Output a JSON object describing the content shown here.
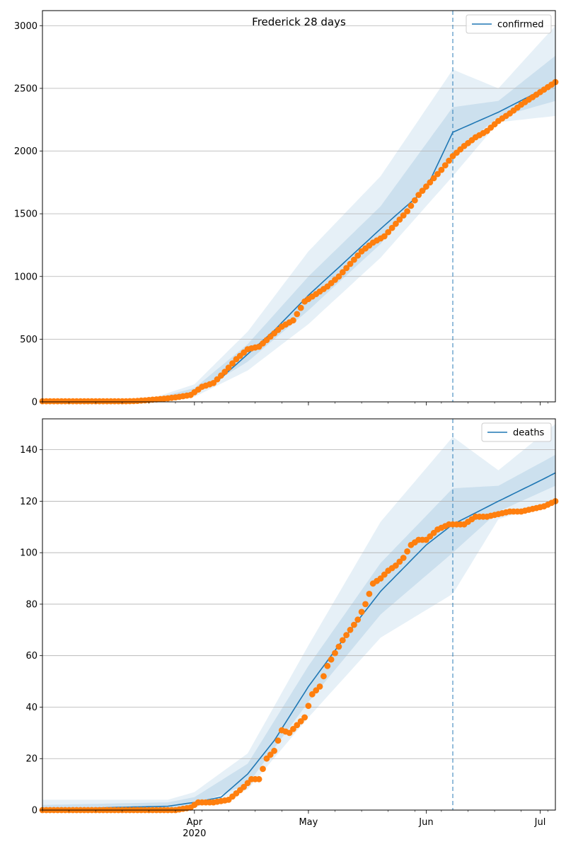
{
  "title": "Frederick 28 days",
  "colors": {
    "model": "#1f77b4",
    "observed": "#ff7f0e",
    "band": "#1f77b4",
    "grid": "#b0b0b0",
    "cutoff": "#1f77b4"
  },
  "x_axis": {
    "start": "2020-02-21",
    "end": "2020-07-05",
    "cutoff": "2020-06-08",
    "month_labels": [
      {
        "date": "2020-04-01",
        "label": "Apr",
        "sublabel": "2020"
      },
      {
        "date": "2020-05-01",
        "label": "May",
        "sublabel": ""
      },
      {
        "date": "2020-06-01",
        "label": "Jun",
        "sublabel": ""
      },
      {
        "date": "2020-07-01",
        "label": "Jul",
        "sublabel": ""
      }
    ]
  },
  "chart_data": [
    {
      "type": "line",
      "legend": "confirmed",
      "legend_position": "top-right",
      "grid": "horizontal",
      "ylim": [
        0,
        3120
      ],
      "yticks": [
        0,
        500,
        1000,
        1500,
        2000,
        2500,
        3000
      ],
      "model_points": [
        [
          "2020-02-21",
          0
        ],
        [
          "2020-03-10",
          0
        ],
        [
          "2020-03-20",
          10
        ],
        [
          "2020-03-26",
          30
        ],
        [
          "2020-04-01",
          80
        ],
        [
          "2020-04-08",
          190
        ],
        [
          "2020-04-15",
          380
        ],
        [
          "2020-04-22",
          570
        ],
        [
          "2020-05-01",
          850
        ],
        [
          "2020-05-10",
          1100
        ],
        [
          "2020-05-20",
          1380
        ],
        [
          "2020-06-01",
          1700
        ],
        [
          "2020-06-08",
          2150
        ],
        [
          "2020-06-20",
          2310
        ],
        [
          "2020-07-01",
          2480
        ],
        [
          "2020-07-05",
          2550
        ]
      ],
      "band_outer_points": [
        [
          "2020-02-21",
          0,
          0
        ],
        [
          "2020-03-20",
          0,
          20
        ],
        [
          "2020-04-01",
          40,
          140
        ],
        [
          "2020-04-15",
          250,
          560
        ],
        [
          "2020-05-01",
          620,
          1200
        ],
        [
          "2020-05-20",
          1150,
          1800
        ],
        [
          "2020-06-08",
          1800,
          2650
        ],
        [
          "2020-06-20",
          2230,
          2500
        ],
        [
          "2020-07-05",
          2280,
          3000
        ]
      ],
      "band_inner_points": [
        [
          "2020-02-21",
          0,
          0
        ],
        [
          "2020-03-20",
          2,
          15
        ],
        [
          "2020-04-01",
          60,
          110
        ],
        [
          "2020-04-15",
          320,
          460
        ],
        [
          "2020-05-01",
          730,
          1000
        ],
        [
          "2020-05-20",
          1260,
          1560
        ],
        [
          "2020-06-08",
          1980,
          2350
        ],
        [
          "2020-06-20",
          2270,
          2400
        ],
        [
          "2020-07-05",
          2400,
          2760
        ]
      ],
      "observed": [
        [
          "2020-02-21",
          5
        ],
        [
          "2020-02-24",
          5
        ],
        [
          "2020-02-27",
          5
        ],
        [
          "2020-03-01",
          5
        ],
        [
          "2020-03-04",
          5
        ],
        [
          "2020-03-07",
          5
        ],
        [
          "2020-03-10",
          5
        ],
        [
          "2020-03-13",
          5
        ],
        [
          "2020-03-16",
          6
        ],
        [
          "2020-03-19",
          12
        ],
        [
          "2020-03-22",
          20
        ],
        [
          "2020-03-25",
          28
        ],
        [
          "2020-03-28",
          40
        ],
        [
          "2020-03-31",
          55
        ],
        [
          "2020-04-03",
          120
        ],
        [
          "2020-04-06",
          150
        ],
        [
          "2020-04-09",
          240
        ],
        [
          "2020-04-12",
          340
        ],
        [
          "2020-04-15",
          420
        ],
        [
          "2020-04-18",
          440
        ],
        [
          "2020-04-21",
          520
        ],
        [
          "2020-04-24",
          600
        ],
        [
          "2020-04-27",
          650
        ],
        [
          "2020-04-30",
          800
        ],
        [
          "2020-05-03",
          860
        ],
        [
          "2020-05-06",
          920
        ],
        [
          "2020-05-09",
          1000
        ],
        [
          "2020-05-12",
          1100
        ],
        [
          "2020-05-15",
          1200
        ],
        [
          "2020-05-18",
          1270
        ],
        [
          "2020-05-21",
          1320
        ],
        [
          "2020-05-24",
          1420
        ],
        [
          "2020-05-27",
          1520
        ],
        [
          "2020-05-30",
          1650
        ],
        [
          "2020-06-02",
          1750
        ],
        [
          "2020-06-05",
          1850
        ],
        [
          "2020-06-08",
          1960
        ],
        [
          "2020-06-11",
          2040
        ],
        [
          "2020-06-14",
          2110
        ],
        [
          "2020-06-17",
          2160
        ],
        [
          "2020-06-20",
          2240
        ],
        [
          "2020-06-23",
          2300
        ],
        [
          "2020-06-26",
          2370
        ],
        [
          "2020-06-29",
          2430
        ],
        [
          "2020-07-02",
          2490
        ],
        [
          "2020-07-05",
          2550
        ]
      ]
    },
    {
      "type": "line",
      "legend": "deaths",
      "legend_position": "top-right",
      "grid": "horizontal",
      "ylim": [
        0,
        152
      ],
      "yticks": [
        0,
        20,
        40,
        60,
        80,
        100,
        120,
        140
      ],
      "model_points": [
        [
          "2020-02-21",
          0
        ],
        [
          "2020-03-01",
          0.5
        ],
        [
          "2020-03-10",
          1
        ],
        [
          "2020-03-25",
          1.5
        ],
        [
          "2020-04-01",
          3
        ],
        [
          "2020-04-08",
          5
        ],
        [
          "2020-04-15",
          14
        ],
        [
          "2020-04-22",
          27
        ],
        [
          "2020-05-01",
          48
        ],
        [
          "2020-05-10",
          66
        ],
        [
          "2020-05-20",
          85
        ],
        [
          "2020-06-01",
          103
        ],
        [
          "2020-06-08",
          111
        ],
        [
          "2020-06-20",
          120
        ],
        [
          "2020-07-01",
          128
        ],
        [
          "2020-07-05",
          131
        ]
      ],
      "band_outer_points": [
        [
          "2020-02-21",
          0,
          4
        ],
        [
          "2020-03-25",
          0,
          4
        ],
        [
          "2020-04-01",
          1,
          7
        ],
        [
          "2020-04-15",
          8,
          22
        ],
        [
          "2020-05-01",
          36,
          64
        ],
        [
          "2020-05-20",
          67,
          112
        ],
        [
          "2020-06-08",
          84,
          145
        ],
        [
          "2020-06-20",
          113,
          132
        ],
        [
          "2020-07-05",
          120,
          150
        ]
      ],
      "band_inner_points": [
        [
          "2020-02-21",
          0,
          2
        ],
        [
          "2020-03-25",
          0.5,
          3
        ],
        [
          "2020-04-01",
          2,
          5
        ],
        [
          "2020-04-15",
          10,
          18
        ],
        [
          "2020-05-01",
          42,
          56
        ],
        [
          "2020-05-20",
          76,
          96
        ],
        [
          "2020-06-08",
          100,
          125
        ],
        [
          "2020-06-20",
          116,
          126
        ],
        [
          "2020-07-05",
          126,
          138
        ]
      ],
      "observed": [
        [
          "2020-02-21",
          0
        ],
        [
          "2020-02-28",
          0
        ],
        [
          "2020-03-06",
          0
        ],
        [
          "2020-03-13",
          0
        ],
        [
          "2020-03-20",
          0
        ],
        [
          "2020-03-27",
          0
        ],
        [
          "2020-03-31",
          1
        ],
        [
          "2020-04-02",
          3
        ],
        [
          "2020-04-06",
          3
        ],
        [
          "2020-04-10",
          4
        ],
        [
          "2020-04-14",
          9
        ],
        [
          "2020-04-16",
          12
        ],
        [
          "2020-04-18",
          12
        ],
        [
          "2020-04-20",
          20
        ],
        [
          "2020-04-22",
          23
        ],
        [
          "2020-04-24",
          31
        ],
        [
          "2020-04-26",
          30
        ],
        [
          "2020-04-28",
          33
        ],
        [
          "2020-04-30",
          36
        ],
        [
          "2020-05-02",
          45
        ],
        [
          "2020-05-04",
          48
        ],
        [
          "2020-05-06",
          56
        ],
        [
          "2020-05-08",
          61
        ],
        [
          "2020-05-10",
          66
        ],
        [
          "2020-05-12",
          70
        ],
        [
          "2020-05-14",
          74
        ],
        [
          "2020-05-16",
          80
        ],
        [
          "2020-05-18",
          88
        ],
        [
          "2020-05-20",
          90
        ],
        [
          "2020-05-22",
          93
        ],
        [
          "2020-05-24",
          95
        ],
        [
          "2020-05-26",
          98
        ],
        [
          "2020-05-28",
          103
        ],
        [
          "2020-05-30",
          105
        ],
        [
          "2020-06-01",
          105
        ],
        [
          "2020-06-04",
          109
        ],
        [
          "2020-06-07",
          111
        ],
        [
          "2020-06-11",
          111
        ],
        [
          "2020-06-14",
          114
        ],
        [
          "2020-06-17",
          114
        ],
        [
          "2020-06-20",
          115
        ],
        [
          "2020-06-23",
          116
        ],
        [
          "2020-06-26",
          116
        ],
        [
          "2020-06-29",
          117
        ],
        [
          "2020-07-02",
          118
        ],
        [
          "2020-07-05",
          120
        ]
      ]
    }
  ]
}
